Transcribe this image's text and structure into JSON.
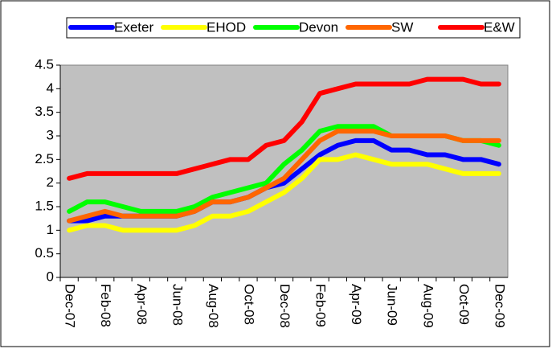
{
  "chart_data": {
    "type": "line",
    "categories": [
      "Dec-07",
      null,
      "Feb-08",
      null,
      "Apr-08",
      null,
      "Jun-08",
      null,
      "Aug-08",
      null,
      "Oct-08",
      null,
      "Dec-08",
      null,
      "Feb-09",
      null,
      "Apr-09",
      null,
      "Jun-09",
      null,
      "Aug-09",
      null,
      "Oct-09",
      null,
      "Dec-09"
    ],
    "series": [
      {
        "name": "Exeter",
        "color": "#0000ff",
        "values": [
          1.2,
          1.2,
          1.3,
          1.3,
          1.3,
          1.3,
          1.3,
          1.4,
          1.6,
          1.6,
          1.7,
          1.9,
          2.0,
          2.3,
          2.6,
          2.8,
          2.9,
          2.9,
          2.7,
          2.7,
          2.6,
          2.6,
          2.5,
          2.5,
          2.4
        ]
      },
      {
        "name": "EHOD",
        "color": "#ffff00",
        "values": [
          1.0,
          1.1,
          1.1,
          1.0,
          1.0,
          1.0,
          1.0,
          1.1,
          1.3,
          1.3,
          1.4,
          1.6,
          1.8,
          2.1,
          2.5,
          2.5,
          2.6,
          2.5,
          2.4,
          2.4,
          2.4,
          2.3,
          2.2,
          2.2,
          2.2
        ]
      },
      {
        "name": "Devon",
        "color": "#00ff00",
        "values": [
          1.4,
          1.6,
          1.6,
          1.5,
          1.4,
          1.4,
          1.4,
          1.5,
          1.7,
          1.8,
          1.9,
          2.0,
          2.4,
          2.7,
          3.1,
          3.2,
          3.2,
          3.2,
          3.0,
          3.0,
          3.0,
          3.0,
          2.9,
          2.9,
          2.8
        ]
      },
      {
        "name": "SW",
        "color": "#ff6600",
        "values": [
          1.2,
          1.3,
          1.4,
          1.3,
          1.3,
          1.3,
          1.3,
          1.4,
          1.6,
          1.6,
          1.7,
          1.9,
          2.1,
          2.5,
          2.9,
          3.1,
          3.1,
          3.1,
          3.0,
          3.0,
          3.0,
          3.0,
          2.9,
          2.9,
          2.9
        ]
      },
      {
        "name": "E&W",
        "color": "#ff0000",
        "values": [
          2.1,
          2.2,
          2.2,
          2.2,
          2.2,
          2.2,
          2.2,
          2.3,
          2.4,
          2.5,
          2.5,
          2.8,
          2.9,
          3.3,
          3.9,
          4.0,
          4.1,
          4.1,
          4.1,
          4.1,
          4.2,
          4.2,
          4.2,
          4.1,
          4.1
        ]
      }
    ],
    "ylim": [
      0,
      4.5
    ],
    "yticks": [
      0,
      0.5,
      1,
      1.5,
      2,
      2.5,
      3,
      3.5,
      4,
      4.5
    ],
    "grid": false,
    "legend": "top",
    "plot_background": "#c0c0c0"
  }
}
